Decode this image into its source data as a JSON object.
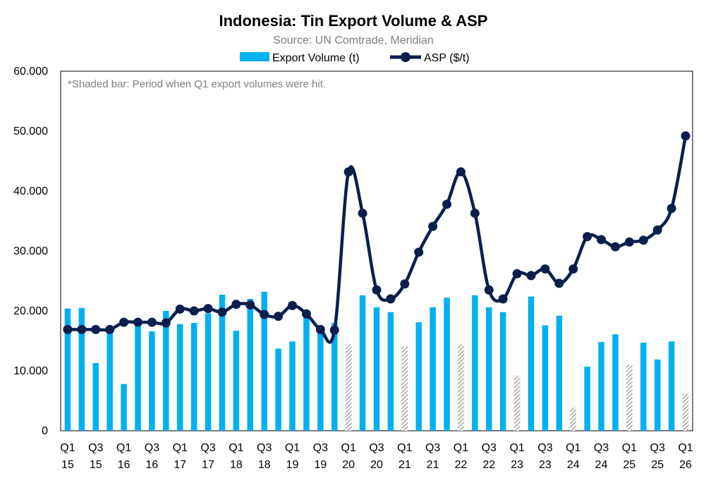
{
  "chart_data": {
    "type": "bar",
    "title": "Indonesia: Tin Export Volume & ASP",
    "subtitle": "Source: UN Comtrade, Meridian",
    "annotation": "*Shaded bar: Period when Q1 export volumes were hit.",
    "ylim": [
      0,
      60000
    ],
    "yticks": [
      0,
      10000,
      20000,
      30000,
      40000,
      50000,
      60000
    ],
    "ytick_labels": [
      "0",
      "10.000",
      "20.000",
      "30.000",
      "40.000",
      "50.000",
      "60.000"
    ],
    "legend_position": "top-center",
    "grid": false,
    "colors": {
      "bar": "#00b0f0",
      "shaded_bar": "#7f7f7f",
      "line": "#0b1f4d"
    },
    "xtick_labels": [
      {
        "q": "Q1",
        "y": "15"
      },
      {
        "q": "Q3",
        "y": "15"
      },
      {
        "q": "Q1",
        "y": "16"
      },
      {
        "q": "Q3",
        "y": "16"
      },
      {
        "q": "Q1",
        "y": "17"
      },
      {
        "q": "Q3",
        "y": "17"
      },
      {
        "q": "Q1",
        "y": "18"
      },
      {
        "q": "Q3",
        "y": "18"
      },
      {
        "q": "Q1",
        "y": "19"
      },
      {
        "q": "Q3",
        "y": "19"
      },
      {
        "q": "Q1",
        "y": "20"
      },
      {
        "q": "Q3",
        "y": "20"
      },
      {
        "q": "Q1",
        "y": "21"
      },
      {
        "q": "Q3",
        "y": "21"
      },
      {
        "q": "Q1",
        "y": "22"
      },
      {
        "q": "Q3",
        "y": "22"
      },
      {
        "q": "Q1",
        "y": "23"
      },
      {
        "q": "Q3",
        "y": "23"
      },
      {
        "q": "Q1",
        "y": "24"
      },
      {
        "q": "Q3",
        "y": "24"
      },
      {
        "q": "Q1",
        "y": "25"
      },
      {
        "q": "Q3",
        "y": "25"
      },
      {
        "q": "Q1",
        "y": "26"
      }
    ],
    "categories": [
      "Q1 15",
      "Q2 15",
      "Q3 15",
      "Q4 15",
      "Q1 16",
      "Q2 16",
      "Q3 16",
      "Q4 16",
      "Q1 17",
      "Q2 17",
      "Q3 17",
      "Q4 17",
      "Q1 18",
      "Q2 18",
      "Q3 18",
      "Q4 18",
      "Q1 19",
      "Q2 19",
      "Q3 19",
      "Q4 19",
      "Q1 20",
      "Q2 20",
      "Q3 20",
      "Q4 20",
      "Q1 21",
      "Q2 21",
      "Q3 21",
      "Q4 21",
      "Q1 22",
      "Q2 22",
      "Q3 22",
      "Q4 22",
      "Q1 23",
      "Q2 23",
      "Q3 23",
      "Q4 23",
      "Q1 24",
      "Q2 24",
      "Q3 24",
      "Q4 24",
      "Q1 25",
      "Q2 25",
      "Q3 25",
      "Q4 25",
      "Q1 26"
    ],
    "series": [
      {
        "name": "Export Volume (t)",
        "type": "bar",
        "values": [
          20400,
          20500,
          11300,
          16600,
          7800,
          18000,
          16600,
          20000,
          17800,
          18000,
          19600,
          22700,
          16700,
          22000,
          23200,
          13700,
          14900,
          19300,
          16800,
          18000,
          14400,
          22600,
          20600,
          19800,
          14100,
          18100,
          20600,
          22200,
          14400,
          22600,
          20600,
          19800,
          9200,
          22400,
          17600,
          19200,
          3900,
          10700,
          14800,
          16100,
          11000,
          14700,
          11900,
          14900,
          6200
        ],
        "shaded": [
          false,
          false,
          false,
          false,
          false,
          false,
          false,
          false,
          false,
          false,
          false,
          false,
          false,
          false,
          false,
          false,
          false,
          false,
          false,
          false,
          true,
          false,
          false,
          false,
          true,
          false,
          false,
          false,
          true,
          false,
          false,
          false,
          true,
          false,
          false,
          false,
          true,
          false,
          false,
          false,
          true,
          false,
          false,
          false,
          true
        ]
      },
      {
        "name": "ASP ($/t)",
        "type": "line",
        "values": [
          16900,
          16900,
          16900,
          16900,
          18100,
          18100,
          18100,
          18000,
          20300,
          20000,
          20400,
          19800,
          21100,
          21000,
          19400,
          19100,
          20900,
          19500,
          16900,
          16800,
          43200,
          36300,
          23500,
          22000,
          24500,
          29800,
          34100,
          37800,
          43200,
          36300,
          23500,
          22000,
          26200,
          25900,
          27000,
          24600,
          27000,
          32400,
          31900,
          30700,
          31500,
          31800,
          33500,
          37100,
          49200
        ]
      }
    ]
  }
}
